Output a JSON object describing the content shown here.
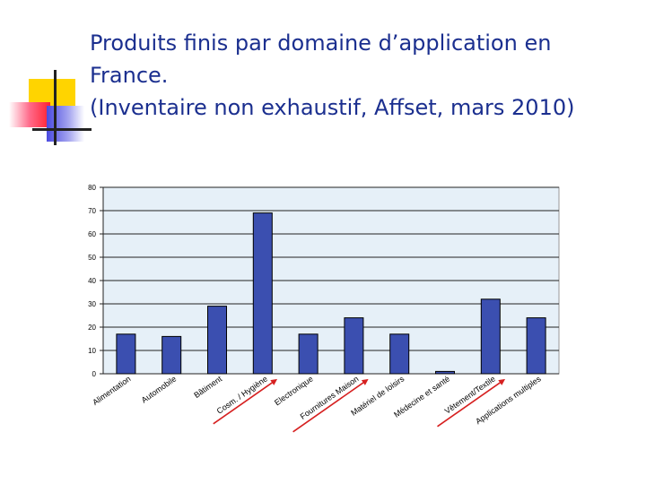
{
  "title_lines": [
    "Produits finis par domaine d’application en",
    "France.",
    "(Inventaire non exhaustif, Affset, mars 2010)"
  ],
  "colors": {
    "bar": "#3b4fb0",
    "plot_bg": "#e6f0f8",
    "arrow": "#d62020",
    "title": "#1b2f8f"
  },
  "chart_data": {
    "type": "bar",
    "title": "Produits finis par domaine d’application en France. (Inventaire non exhaustif, Affset, mars 2010)",
    "categories": [
      "Alimentation",
      "Automobile",
      "Bâtiment",
      "Cosm. / Hygiène",
      "Electronique",
      "Fournitures Maison",
      "Matériel de loisirs",
      "Médecine et santé",
      "Vêtement/Textile",
      "Applications multiples"
    ],
    "values": [
      17,
      16,
      29,
      69,
      17,
      24,
      17,
      1,
      32,
      24
    ],
    "highlighted": [
      "Cosm. / Hygiène",
      "Fournitures Maison",
      "Vêtement/Textile"
    ],
    "ylim": [
      0,
      80
    ],
    "yticks": [
      0,
      10,
      20,
      30,
      40,
      50,
      60,
      70,
      80
    ],
    "xlabel": "",
    "ylabel": "",
    "grid": true,
    "legend": false
  }
}
